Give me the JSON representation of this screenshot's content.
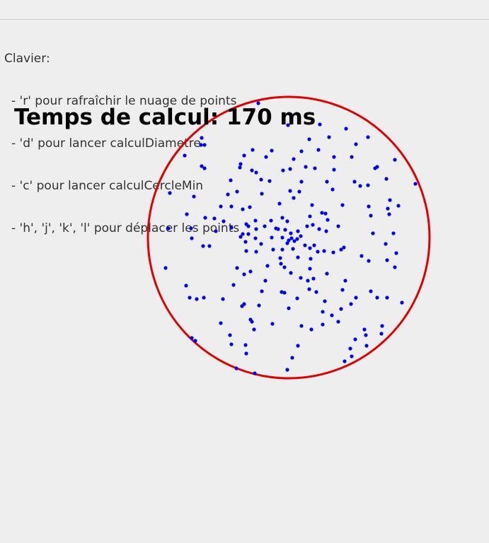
{
  "help": {
    "heading": "Clavier:",
    "lines": [
      "- 'r' pour rafraîchir le nuage de points",
      "- 'd' pour lancer calculDiametre",
      "- 'c' pour lancer calculCercleMin",
      "- 'h', 'j', 'k', 'l' pour déplacer les points"
    ]
  },
  "timing": {
    "label": "Temps de calcul: 170 ms",
    "value_ms": 170
  },
  "colors": {
    "background": "#eeeeee",
    "points": "#0000ff",
    "circle": "#e00000",
    "text": "#333333"
  },
  "shapes": {
    "circle": "minimum-enclosing-circle",
    "points": "point-cloud"
  }
}
